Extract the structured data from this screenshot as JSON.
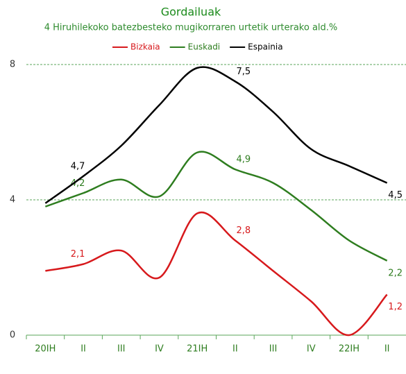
{
  "chart_data": {
    "type": "line",
    "title": "Gordailuak",
    "subtitle": "4 Hiruhilekoko batezbesteko mugikorraren urtetik urterako ald.%",
    "categories": [
      "20IH",
      "II",
      "III",
      "IV",
      "21IH",
      "II",
      "III",
      "IV",
      "22IH",
      "II"
    ],
    "series": [
      {
        "name": "Bizkaia",
        "color": "#d7191c",
        "values": [
          1.9,
          2.1,
          2.5,
          1.7,
          3.6,
          2.8,
          1.9,
          1.0,
          0,
          1.2
        ],
        "value_labels": [
          null,
          "2,1",
          null,
          null,
          null,
          "2,8",
          null,
          null,
          null,
          "1,2"
        ]
      },
      {
        "name": "Euskadi",
        "color": "#2e7d1f",
        "values": [
          3.8,
          4.2,
          4.6,
          4.1,
          5.4,
          4.9,
          4.5,
          3.7,
          2.8,
          2.2
        ],
        "value_labels": [
          null,
          "4,2",
          null,
          null,
          null,
          "4,9",
          null,
          null,
          null,
          "2,2"
        ]
      },
      {
        "name": "Espainia",
        "color": "#000000",
        "values": [
          3.9,
          4.7,
          5.6,
          6.8,
          7.9,
          7.5,
          6.6,
          5.5,
          5.0,
          4.5
        ],
        "value_labels": [
          null,
          "4,7",
          null,
          null,
          null,
          "7,5",
          null,
          null,
          null,
          "4,5"
        ]
      }
    ],
    "ylim": [
      0,
      8.8
    ],
    "yticks": [
      0,
      4,
      8
    ],
    "grid": true,
    "legend": "top"
  }
}
